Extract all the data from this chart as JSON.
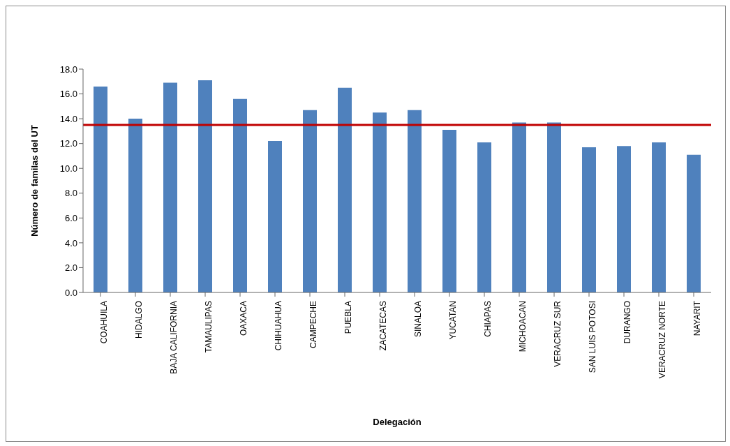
{
  "chart_data": {
    "type": "bar",
    "xlabel": "Delegación",
    "ylabel": "Número de familas  del UT",
    "categories": [
      "COAHUILA",
      "HIDALGO",
      "BAJA CALIFORNIA",
      "TAMAULIPAS",
      "OAXACA",
      "CHIHUAHUA",
      "CAMPECHE",
      "PUEBLA",
      "ZACATECAS",
      "SINALOA",
      "YUCATAN",
      "CHIAPAS",
      "MICHOACAN",
      "VERACRUZ SUR",
      "SAN LUIS POTOSI",
      "DURANGO",
      "VERACRUZ NORTE",
      "NAYARIT"
    ],
    "values": [
      16.6,
      14.0,
      16.9,
      17.1,
      15.6,
      12.2,
      14.7,
      16.5,
      14.5,
      14.7,
      13.1,
      12.1,
      13.7,
      13.7,
      11.7,
      11.8,
      12.1,
      11.1
    ],
    "color": "#4f81bd",
    "ylim": [
      0,
      18
    ],
    "yticks": [
      {
        "value": 0,
        "label": "0.0"
      },
      {
        "value": 2,
        "label": "2.0"
      },
      {
        "value": 4,
        "label": "4.0"
      },
      {
        "value": 6,
        "label": "6.0"
      },
      {
        "value": 8,
        "label": "8.0"
      },
      {
        "value": 10,
        "label": "10.0"
      },
      {
        "value": 12,
        "label": "12.0"
      },
      {
        "value": 14,
        "label": "14.0"
      },
      {
        "value": 16,
        "label": "16.0"
      },
      {
        "value": 18,
        "label": "18.0"
      }
    ],
    "ref_lines": [
      {
        "axis": "y",
        "value": 13.5,
        "color": "#c00000"
      }
    ]
  }
}
